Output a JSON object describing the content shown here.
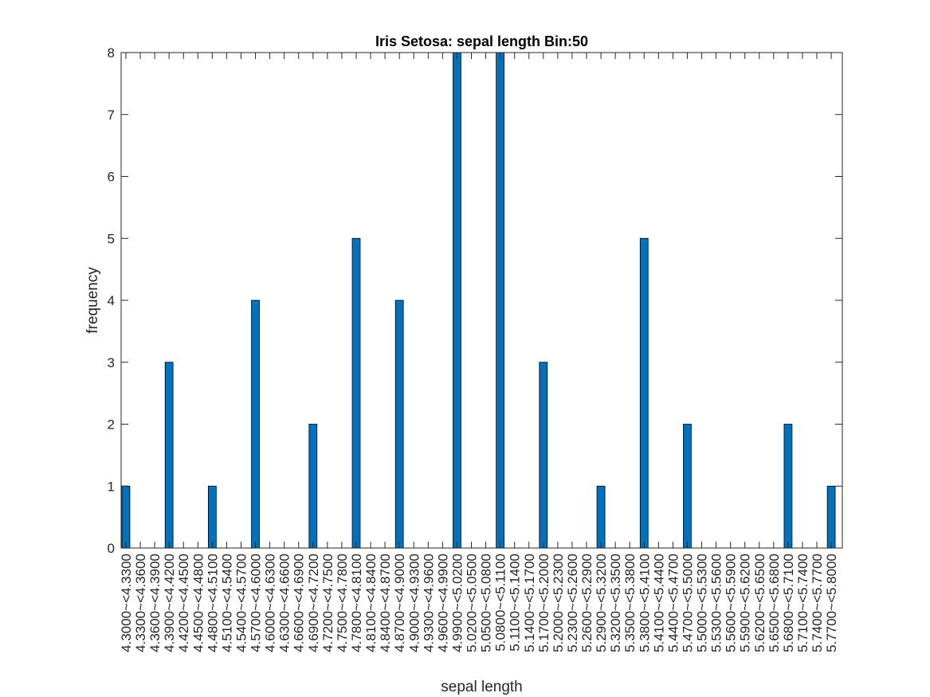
{
  "chart_data": {
    "type": "bar",
    "title": "Iris Setosa: sepal length Bin:50",
    "xlabel": "sepal length",
    "ylabel": "frequency",
    "ylim": [
      0,
      8
    ],
    "yticks": [
      0,
      1,
      2,
      3,
      4,
      5,
      6,
      7,
      8
    ],
    "grid": false,
    "bar_color": "#0072BD",
    "bar_edge_color": "#000000",
    "categories": [
      "4.3000~<4.3300",
      "4.3300~<4.3600",
      "4.3600~<4.3900",
      "4.3900~<4.4200",
      "4.4200~<4.4500",
      "4.4500~<4.4800",
      "4.4800~<4.5100",
      "4.5100~<4.5400",
      "4.5400~<4.5700",
      "4.5700~<4.6000",
      "4.6000~<4.6300",
      "4.6300~<4.6600",
      "4.6600~<4.6900",
      "4.6900~<4.7200",
      "4.7200~<4.7500",
      "4.7500~<4.7800",
      "4.7800~<4.8100",
      "4.8100~<4.8400",
      "4.8400~<4.8700",
      "4.8700~<4.9000",
      "4.9000~<4.9300",
      "4.9300~<4.9600",
      "4.9600~<4.9900",
      "4.9900~<5.0200",
      "5.0200~<5.0500",
      "5.0500~<5.0800",
      "5.0800~<5.1100",
      "5.1100~<5.1400",
      "5.1400~<5.1700",
      "5.1700~<5.2000",
      "5.2000~<5.2300",
      "5.2300~<5.2600",
      "5.2600~<5.2900",
      "5.2900~<5.3200",
      "5.3200~<5.3500",
      "5.3500~<5.3800",
      "5.3800~<5.4100",
      "5.4100~<5.4400",
      "5.4400~<5.4700",
      "5.4700~<5.5000",
      "5.5000~<5.5300",
      "5.5300~<5.5600",
      "5.5600~<5.5900",
      "5.5900~<5.6200",
      "5.6200~<5.6500",
      "5.6500~<5.6800",
      "5.6800~<5.7100",
      "5.7100~<5.7400",
      "5.7400~<5.7700",
      "5.7700~<5.8000"
    ],
    "values": [
      1,
      0,
      0,
      3,
      0,
      0,
      1,
      0,
      0,
      4,
      0,
      0,
      0,
      2,
      0,
      0,
      5,
      0,
      0,
      4,
      0,
      0,
      0,
      8,
      0,
      0,
      8,
      0,
      0,
      3,
      0,
      0,
      0,
      1,
      0,
      0,
      5,
      0,
      0,
      2,
      0,
      0,
      0,
      0,
      0,
      0,
      2,
      0,
      0,
      1
    ]
  }
}
